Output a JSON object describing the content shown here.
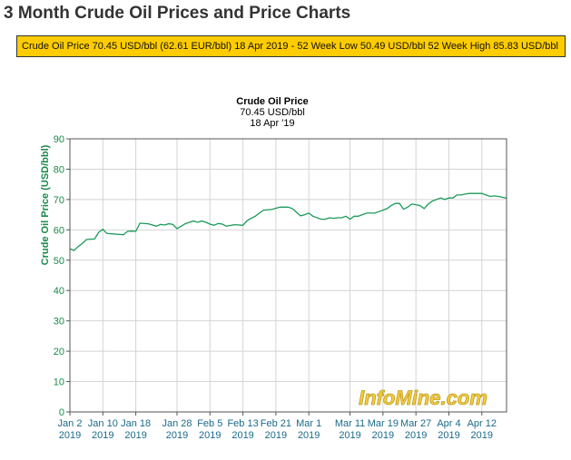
{
  "page": {
    "title": "3 Month Crude Oil Prices and Price Charts"
  },
  "ticker": {
    "label": "Crude Oil Price",
    "price": "70.45 USD/bbl",
    "price_eur": "(62.61 EUR/bbl)",
    "date": "18 Apr 2019",
    "separator": "-",
    "low_label": "52 Week Low",
    "low_value": "50.49 USD/bbl",
    "high_label": "52 Week High",
    "high_value": "85.83 USD/bbl"
  },
  "chart_data": {
    "type": "line",
    "title": "Crude Oil Price",
    "subtitle": "70.45 USD/bbl",
    "date_label": "18 Apr '19",
    "ylabel": "Crude Oil Price (USD/bbl)",
    "xlabel": "",
    "ylim": [
      0,
      90
    ],
    "yticks": [
      0,
      10,
      20,
      30,
      40,
      50,
      60,
      70,
      80,
      90
    ],
    "grid": true,
    "watermark": "InfoMine.com",
    "line_color": "#1a9a5a",
    "axis_color": "#1a8a4a",
    "xticks": [
      {
        "day": 0,
        "label": "Jan 2",
        "year": "2019"
      },
      {
        "day": 8,
        "label": "Jan 10",
        "year": "2019"
      },
      {
        "day": 16,
        "label": "Jan 18",
        "year": "2019"
      },
      {
        "day": 26,
        "label": "Jan 28",
        "year": "2019"
      },
      {
        "day": 34,
        "label": "Feb 5",
        "year": "2019"
      },
      {
        "day": 42,
        "label": "Feb 13",
        "year": "2019"
      },
      {
        "day": 50,
        "label": "Feb 21",
        "year": "2019"
      },
      {
        "day": 58,
        "label": "Mar 1",
        "year": "2019"
      },
      {
        "day": 68,
        "label": "Mar 11",
        "year": "2019"
      },
      {
        "day": 76,
        "label": "Mar 19",
        "year": "2019"
      },
      {
        "day": 84,
        "label": "Mar 27",
        "year": "2019"
      },
      {
        "day": 92,
        "label": "Apr 4",
        "year": "2019"
      },
      {
        "day": 100,
        "label": "Apr 12",
        "year": "2019"
      }
    ],
    "xlim": [
      0,
      106
    ],
    "series": [
      {
        "name": "Crude Oil Price",
        "x": [
          0,
          1,
          2,
          3,
          4,
          6,
          7,
          8,
          9,
          11,
          13,
          14,
          15,
          16,
          17,
          19,
          21,
          22,
          23,
          24,
          25,
          26,
          28,
          29,
          30,
          31,
          32,
          33,
          34,
          35,
          36,
          37,
          38,
          40,
          42,
          43,
          44,
          45,
          46,
          47,
          49,
          51,
          52,
          53,
          54,
          56,
          57,
          58,
          59,
          61,
          62,
          63,
          64,
          65,
          66,
          67,
          68,
          69,
          70,
          71,
          72,
          73,
          74,
          75,
          76,
          77,
          78,
          79,
          80,
          81,
          82,
          83,
          84,
          85,
          86,
          87,
          88,
          89,
          90,
          91,
          92,
          93,
          94,
          95,
          96,
          97,
          98,
          99,
          100,
          101,
          102,
          103,
          104,
          106
        ],
        "y": [
          53.8,
          53.2,
          54.5,
          55.5,
          56.8,
          57.0,
          59.2,
          60.2,
          58.8,
          58.6,
          58.4,
          59.5,
          59.6,
          59.5,
          62.2,
          62.0,
          61.2,
          61.8,
          61.6,
          62.0,
          61.8,
          60.4,
          62.0,
          62.5,
          62.9,
          62.5,
          62.9,
          62.5,
          61.9,
          61.5,
          62.1,
          61.9,
          61.2,
          61.7,
          61.5,
          63.0,
          63.8,
          64.5,
          65.5,
          66.5,
          66.7,
          67.5,
          67.5,
          67.5,
          67.0,
          64.6,
          65.0,
          65.5,
          64.5,
          63.5,
          63.5,
          64.0,
          63.8,
          64.0,
          64.0,
          64.5,
          63.5,
          64.5,
          64.5,
          65.0,
          65.5,
          65.5,
          65.5,
          66.0,
          66.5,
          67.0,
          68.0,
          68.7,
          68.7,
          66.8,
          67.5,
          68.5,
          68.3,
          68.0,
          67.0,
          68.5,
          69.5,
          70.0,
          70.5,
          70.0,
          70.5,
          70.5,
          71.5,
          71.5,
          71.8,
          72.0,
          72.0,
          72.0,
          72.0,
          71.5,
          71.0,
          71.2,
          71.0,
          70.45
        ]
      }
    ]
  }
}
